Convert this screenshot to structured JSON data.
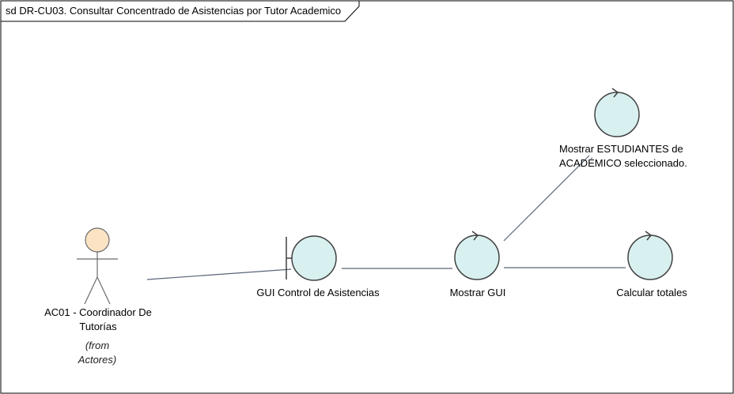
{
  "frame": {
    "title": "sd DR-CU03. Consultar Concentrado de Asistencias por Tutor Academico"
  },
  "actor": {
    "name_line1": "AC01 - Coordinador De",
    "name_line2": "Tutorías",
    "from_line1": "(from",
    "from_line2": "Actores)"
  },
  "boundary": {
    "label": "GUI Control de Asistencias"
  },
  "controls": {
    "mostrar_gui": "Mostrar GUI",
    "mostrar_estudiantes_line1": "Mostrar ESTUDIANTES de",
    "mostrar_estudiantes_line2": "ACADÉMICO seleccionado.",
    "calcular_totales": "Calcular totales"
  },
  "colors": {
    "control_fill": "#d9f0f0",
    "actor_fill": "#fbe3c4",
    "line": "#5a6378",
    "border": "#000000"
  }
}
